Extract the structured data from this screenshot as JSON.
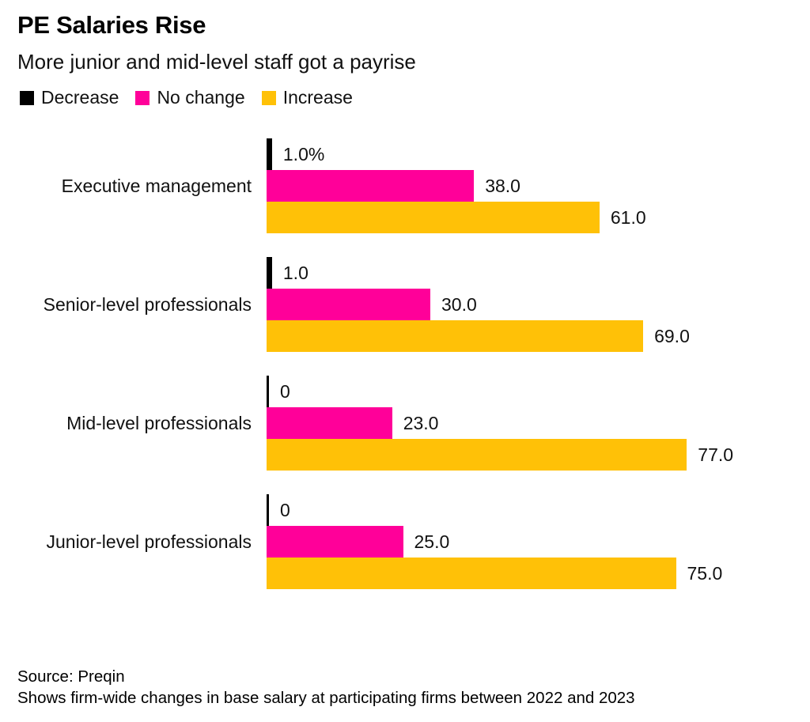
{
  "header": {
    "title": "PE Salaries Rise",
    "subtitle": "More junior and mid-level staff got a payrise"
  },
  "legend": [
    {
      "label": "Decrease",
      "color": "#000000",
      "icon": "legend-swatch-black"
    },
    {
      "label": "No change",
      "color": "#ff0099",
      "icon": "legend-swatch-pink"
    },
    {
      "label": "Increase",
      "color": "#ffc107",
      "icon": "legend-swatch-yellow"
    }
  ],
  "chart_data": {
    "type": "bar",
    "orientation": "horizontal",
    "unit": "percent",
    "xlim": [
      0,
      100
    ],
    "grid": false,
    "legend_position": "top",
    "categories": [
      "Executive management",
      "Senior-level professionals",
      "Mid-level professionals",
      "Junior-level professionals"
    ],
    "series": [
      {
        "name": "Decrease",
        "color": "#000000",
        "values": [
          1.0,
          1.0,
          0,
          0
        ],
        "labels": [
          "1.0%",
          "1.0",
          "0",
          "0"
        ]
      },
      {
        "name": "No change",
        "color": "#ff0099",
        "values": [
          38.0,
          30.0,
          23.0,
          25.0
        ],
        "labels": [
          "38.0",
          "30.0",
          "23.0",
          "25.0"
        ]
      },
      {
        "name": "Increase",
        "color": "#ffc107",
        "values": [
          61.0,
          69.0,
          77.0,
          75.0
        ],
        "labels": [
          "61.0",
          "69.0",
          "77.0",
          "75.0"
        ]
      }
    ]
  },
  "footer": {
    "source": "Source: Preqin",
    "note": "Shows firm-wide changes in base salary at participating firms between 2022 and 2023"
  }
}
